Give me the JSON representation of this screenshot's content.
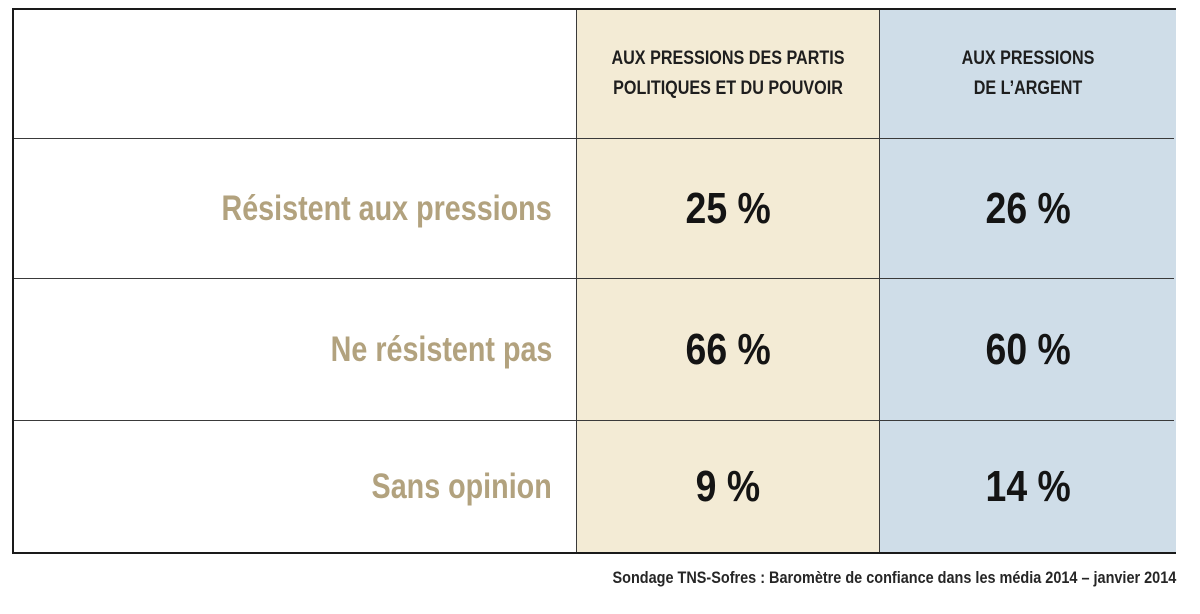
{
  "chart_data": {
    "type": "table",
    "columns": [
      "Aux pressions des partis politiques et du pouvoir",
      "Aux pressions de l’argent"
    ],
    "rows": [
      {
        "label": "Résistent aux pressions",
        "values": [
          "25 %",
          "26 %"
        ]
      },
      {
        "label": "Ne résistent pas",
        "values": [
          "66 %",
          "60 %"
        ]
      },
      {
        "label": "Sans opinion",
        "values": [
          "9 %",
          "14 %"
        ]
      }
    ],
    "numeric_values": [
      [
        25,
        26
      ],
      [
        66,
        60
      ],
      [
        9,
        14
      ]
    ],
    "unit": "%"
  },
  "header": {
    "col_a_line1": "Aux pressions des partis",
    "col_a_line2": "politiques et du pouvoir",
    "col_b_line1": "Aux pressions",
    "col_b_line2": "de l’argent"
  },
  "rows": [
    {
      "label": "Résistent aux pressions",
      "a": "25 %",
      "b": "26 %"
    },
    {
      "label": "Ne résistent pas",
      "a": "66 %",
      "b": "60 %"
    },
    {
      "label": "Sans opinion",
      "a": "9 %",
      "b": "14 %"
    }
  ],
  "source": "Sondage TNS-Sofres : Baromètre de confiance dans les média 2014 – janvier 2014",
  "colors": {
    "col_a_background": "#f3ebd5",
    "col_b_background": "#cfdde8",
    "row_label_text": "#b2a27e",
    "value_text": "#141414",
    "border": "#1a1a1a"
  }
}
